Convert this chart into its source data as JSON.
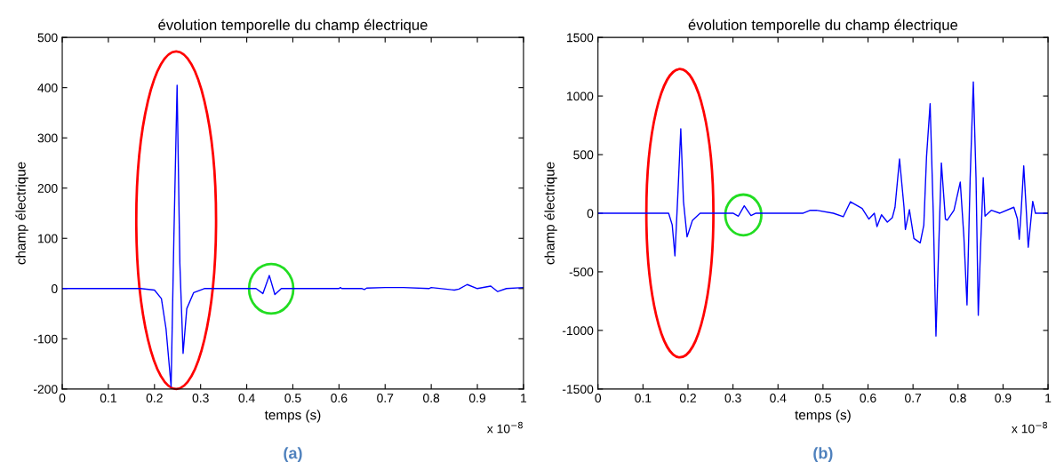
{
  "chart_data": [
    {
      "type": "line",
      "title": "évolution temporelle du champ électrique",
      "xlabel": "temps (s)",
      "ylabel": "champ électrique",
      "series": [
        {
          "color": "#0000ff",
          "x": [
            0,
            0.17,
            0.2,
            0.215,
            0.225,
            0.236,
            0.242,
            0.249,
            0.255,
            0.262,
            0.27,
            0.285,
            0.308,
            0.42,
            0.435,
            0.449,
            0.461,
            0.475,
            0.6,
            0.603,
            0.606,
            0.65,
            0.655,
            0.66,
            0.7,
            0.74,
            0.795,
            0.8,
            0.84,
            0.85,
            0.86,
            0.878,
            0.9,
            0.929,
            0.944,
            0.963,
            1.0
          ],
          "values": [
            0,
            0,
            -3,
            -20,
            -80,
            -195,
            100,
            405,
            50,
            -129,
            -40,
            -8,
            0,
            0,
            -10,
            26,
            -12,
            0,
            0,
            2,
            0,
            0,
            -2,
            1,
            2,
            2,
            0,
            2,
            -2,
            -3,
            -1,
            8,
            0,
            5,
            -6,
            0,
            2
          ]
        }
      ],
      "xlim": [
        0,
        1
      ],
      "ylim": [
        -200,
        500
      ],
      "xticks": [
        0,
        0.1,
        0.2,
        0.3,
        0.4,
        0.5,
        0.6,
        0.7,
        0.8,
        0.9,
        1
      ],
      "yticks": [
        -200,
        -100,
        0,
        100,
        200,
        300,
        400,
        500
      ],
      "grid": false,
      "legend": false,
      "annotations": [
        "x 10$^{−8}$",
        "(a)"
      ]
    },
    {
      "type": "line",
      "title": "évolution temporelle du champ électrique",
      "xlabel": "temps (s)",
      "ylabel": "champ électrique",
      "series": [
        {
          "color": "#0000ff",
          "x": [
            0,
            0.157,
            0.165,
            0.171,
            0.178,
            0.184,
            0.19,
            0.198,
            0.21,
            0.227,
            0.3,
            0.312,
            0.325,
            0.34,
            0.351,
            0.456,
            0.472,
            0.485,
            0.523,
            0.545,
            0.561,
            0.587,
            0.602,
            0.614,
            0.62,
            0.63,
            0.643,
            0.654,
            0.66,
            0.67,
            0.68,
            0.683,
            0.692,
            0.702,
            0.716,
            0.724,
            0.73,
            0.738,
            0.745,
            0.751,
            0.757,
            0.763,
            0.772,
            0.776,
            0.791,
            0.805,
            0.813,
            0.82,
            0.827,
            0.834,
            0.84,
            0.845,
            0.85,
            0.856,
            0.86,
            0.874,
            0.893,
            0.924,
            0.932,
            0.936,
            0.94,
            0.946,
            0.952,
            0.956,
            0.966,
            0.972,
            1.0
          ],
          "values": [
            0,
            0,
            -100,
            -364,
            200,
            720,
            100,
            -202,
            -60,
            0,
            0,
            -25,
            63,
            -20,
            0,
            0,
            25,
            25,
            0,
            -30,
            98,
            40,
            -50,
            0,
            -114,
            -13,
            -76,
            -38,
            51,
            462,
            51,
            -139,
            30,
            -215,
            -253,
            -101,
            480,
            934,
            0,
            -1048,
            -300,
            429,
            -50,
            -60,
            25,
            265,
            -200,
            -783,
            303,
            1120,
            303,
            -871,
            -300,
            303,
            -25,
            25,
            0,
            51,
            -50,
            -222,
            0,
            404,
            0,
            -290,
            101,
            0,
            0
          ]
        }
      ],
      "xlim": [
        0,
        1
      ],
      "ylim": [
        -1500,
        1500
      ],
      "xticks": [
        0,
        0.1,
        0.2,
        0.3,
        0.4,
        0.5,
        0.6,
        0.7,
        0.8,
        0.9,
        1
      ],
      "yticks": [
        -1500,
        -1000,
        -500,
        0,
        500,
        1000,
        1500
      ],
      "grid": false,
      "legend": false,
      "annotations": [
        "x 10$^{−8}$",
        "(b)"
      ]
    }
  ]
}
